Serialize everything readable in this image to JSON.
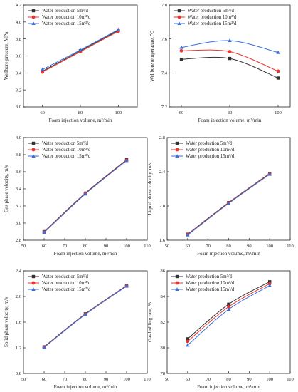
{
  "chart_data": [
    {
      "type": "line",
      "x": [
        60,
        80,
        100
      ],
      "xlim": [
        50,
        110
      ],
      "xticks": [
        60,
        80,
        100
      ],
      "ylim": [
        3.0,
        4.2
      ],
      "yticks": [
        3.0,
        3.2,
        3.4,
        3.6,
        3.8,
        4.0,
        4.2
      ],
      "ytick_labels": [
        "3.0",
        "3.2",
        "3.4",
        "3.6",
        "3.8",
        "4.0",
        "4.2"
      ],
      "xlabel": "Foam injection volume, m³/min",
      "ylabel": "Wellbore pressure, MPa",
      "grid": false,
      "legend_position": "top-left",
      "series": [
        {
          "name": "Water production 5m³/d",
          "color": "#333333",
          "marker": "square",
          "values": [
            3.42,
            3.66,
            3.9
          ]
        },
        {
          "name": "Water production 10m³/d",
          "color": "#e8342c",
          "marker": "circle",
          "values": [
            3.41,
            3.65,
            3.89
          ]
        },
        {
          "name": "Water production 15m³/d",
          "color": "#3a6fd8",
          "marker": "triangle",
          "values": [
            3.44,
            3.67,
            3.91
          ]
        }
      ]
    },
    {
      "type": "line",
      "x": [
        60,
        80,
        100
      ],
      "xlim": [
        55,
        105
      ],
      "xticks": [
        60,
        80,
        100
      ],
      "ylim": [
        7.2,
        7.8
      ],
      "yticks": [
        7.2,
        7.4,
        7.6,
        7.8
      ],
      "ytick_labels": [
        "7.2",
        "7.4",
        "7.6",
        "7.8"
      ],
      "xlabel": "Foam injection volume, m³/min",
      "ylabel": "Wellbore temperature, ℃",
      "grid": false,
      "legend_position": "top-left",
      "series": [
        {
          "name": "Water production 5m³/d",
          "color": "#333333",
          "marker": "square",
          "values": [
            7.48,
            7.485,
            7.37
          ]
        },
        {
          "name": "Water production 10m³/d",
          "color": "#e8342c",
          "marker": "circle",
          "values": [
            7.53,
            7.525,
            7.41
          ]
        },
        {
          "name": "Water production 15m³/d",
          "color": "#3a6fd8",
          "marker": "triangle",
          "values": [
            7.55,
            7.59,
            7.52
          ]
        }
      ]
    },
    {
      "type": "line",
      "x": [
        60,
        80,
        100
      ],
      "xlim": [
        50,
        110
      ],
      "xticks": [
        50,
        60,
        70,
        80,
        90,
        100,
        110
      ],
      "ylim": [
        2.8,
        4.0
      ],
      "yticks": [
        2.8,
        3.0,
        3.2,
        3.4,
        3.6,
        3.8,
        4.0
      ],
      "ytick_labels": [
        "2.8",
        "3.0",
        "3.2",
        "3.4",
        "3.6",
        "3.8",
        "4.0"
      ],
      "xlabel": "Foam injection volume, m³/min",
      "ylabel": "Gas phase velocity, m/s",
      "grid": false,
      "legend_position": "top-left",
      "series": [
        {
          "name": "Water production 5m³/d",
          "color": "#333333",
          "marker": "square",
          "values": [
            2.9,
            3.35,
            3.74
          ]
        },
        {
          "name": "Water production 10m³/d",
          "color": "#e8342c",
          "marker": "circle",
          "values": [
            2.895,
            3.345,
            3.735
          ]
        },
        {
          "name": "Water production 15m³/d",
          "color": "#3a6fd8",
          "marker": "triangle",
          "values": [
            2.89,
            3.34,
            3.73
          ]
        }
      ]
    },
    {
      "type": "line",
      "x": [
        60,
        80,
        100
      ],
      "xlim": [
        50,
        110
      ],
      "xticks": [
        50,
        60,
        70,
        80,
        90,
        100,
        110
      ],
      "ylim": [
        1.6,
        2.8
      ],
      "yticks": [
        1.6,
        2.0,
        2.4,
        2.8
      ],
      "ytick_labels": [
        "1.6",
        "2.0",
        "2.4",
        "2.8"
      ],
      "xlabel": "Foam injection volume, m³/min",
      "ylabel": "Liquid phase velocity, m/s",
      "grid": false,
      "legend_position": "top-left",
      "series": [
        {
          "name": "Water production 5m³/d",
          "color": "#333333",
          "marker": "square",
          "values": [
            1.67,
            2.04,
            2.38
          ]
        },
        {
          "name": "Water production 10m³/d",
          "color": "#e8342c",
          "marker": "circle",
          "values": [
            1.665,
            2.035,
            2.375
          ]
        },
        {
          "name": "Water production 15m³/d",
          "color": "#3a6fd8",
          "marker": "triangle",
          "values": [
            1.66,
            2.03,
            2.37
          ]
        }
      ]
    },
    {
      "type": "line",
      "x": [
        60,
        80,
        100
      ],
      "xlim": [
        50,
        110
      ],
      "xticks": [
        50,
        60,
        70,
        80,
        90,
        100,
        110
      ],
      "ylim": [
        0.8,
        2.4
      ],
      "yticks": [
        0.8,
        1.2,
        1.6,
        2.0,
        2.4
      ],
      "ytick_labels": [
        "0.8",
        "1.2",
        "1.6",
        "2.0",
        "2.4"
      ],
      "xlabel": "Foam injection volume, m³/min",
      "ylabel": "Solid phase velocity, m/s",
      "grid": false,
      "legend_position": "top-left",
      "series": [
        {
          "name": "Water production 5m³/d",
          "color": "#333333",
          "marker": "square",
          "values": [
            1.215,
            1.73,
            2.17
          ]
        },
        {
          "name": "Water production 10m³/d",
          "color": "#e8342c",
          "marker": "circle",
          "values": [
            1.21,
            1.725,
            2.165
          ]
        },
        {
          "name": "Water production 15m³/d",
          "color": "#3a6fd8",
          "marker": "triangle",
          "values": [
            1.205,
            1.72,
            2.16
          ]
        }
      ]
    },
    {
      "type": "line",
      "x": [
        60,
        80,
        100
      ],
      "xlim": [
        50,
        110
      ],
      "xticks": [
        50,
        60,
        70,
        80,
        90,
        100,
        110
      ],
      "ylim": [
        78,
        86
      ],
      "yticks": [
        78,
        80,
        82,
        84,
        86
      ],
      "ytick_labels": [
        "78",
        "80",
        "82",
        "84",
        "86"
      ],
      "xlabel": "Foam injection volume, m³/min",
      "ylabel": "Gas holding rate, %",
      "grid": false,
      "legend_position": "top-left",
      "series": [
        {
          "name": "Water production 5m³/d",
          "color": "#333333",
          "marker": "square",
          "values": [
            80.7,
            83.4,
            85.15
          ]
        },
        {
          "name": "Water production 10m³/d",
          "color": "#e8342c",
          "marker": "circle",
          "values": [
            80.5,
            83.2,
            85.0
          ]
        },
        {
          "name": "Water production 15m³/d",
          "color": "#3a6fd8",
          "marker": "triangle",
          "values": [
            80.2,
            83.0,
            84.85
          ]
        }
      ]
    }
  ]
}
